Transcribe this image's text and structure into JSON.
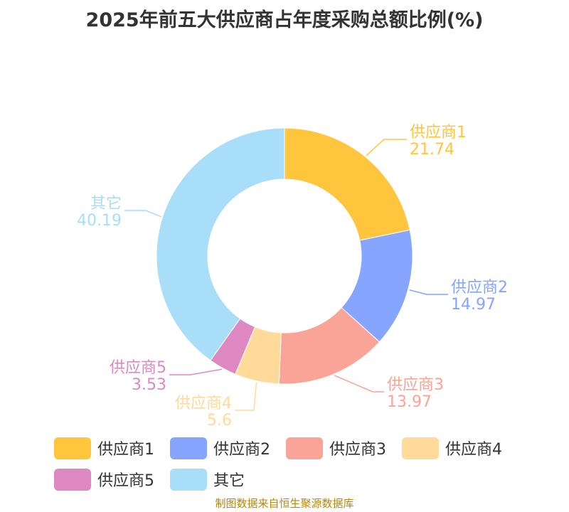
{
  "title": "2025年前五大供应商占年度采购总额比例(%)",
  "source": "制图数据来自恒生聚源数据库",
  "chart_data": {
    "type": "pie",
    "donut": true,
    "title": "2025年前五大供应商占年度采购总额比例(%)",
    "categories": [
      "供应商1",
      "供应商2",
      "供应商3",
      "供应商4",
      "供应商5",
      "其它"
    ],
    "values": [
      21.74,
      14.97,
      13.97,
      5.6,
      3.53,
      40.19
    ],
    "value_labels": [
      "21.74",
      "14.97",
      "13.97",
      "5.6",
      "3.53",
      "40.19"
    ],
    "colors": [
      "#FFC53D",
      "#85A5FF",
      "#FAA397",
      "#FFDA99",
      "#DD88C0",
      "#A8DEF7"
    ],
    "legend": {
      "position": "bottom",
      "items": [
        "供应商1",
        "供应商2",
        "供应商3",
        "供应商4",
        "供应商5",
        "其它"
      ]
    }
  }
}
